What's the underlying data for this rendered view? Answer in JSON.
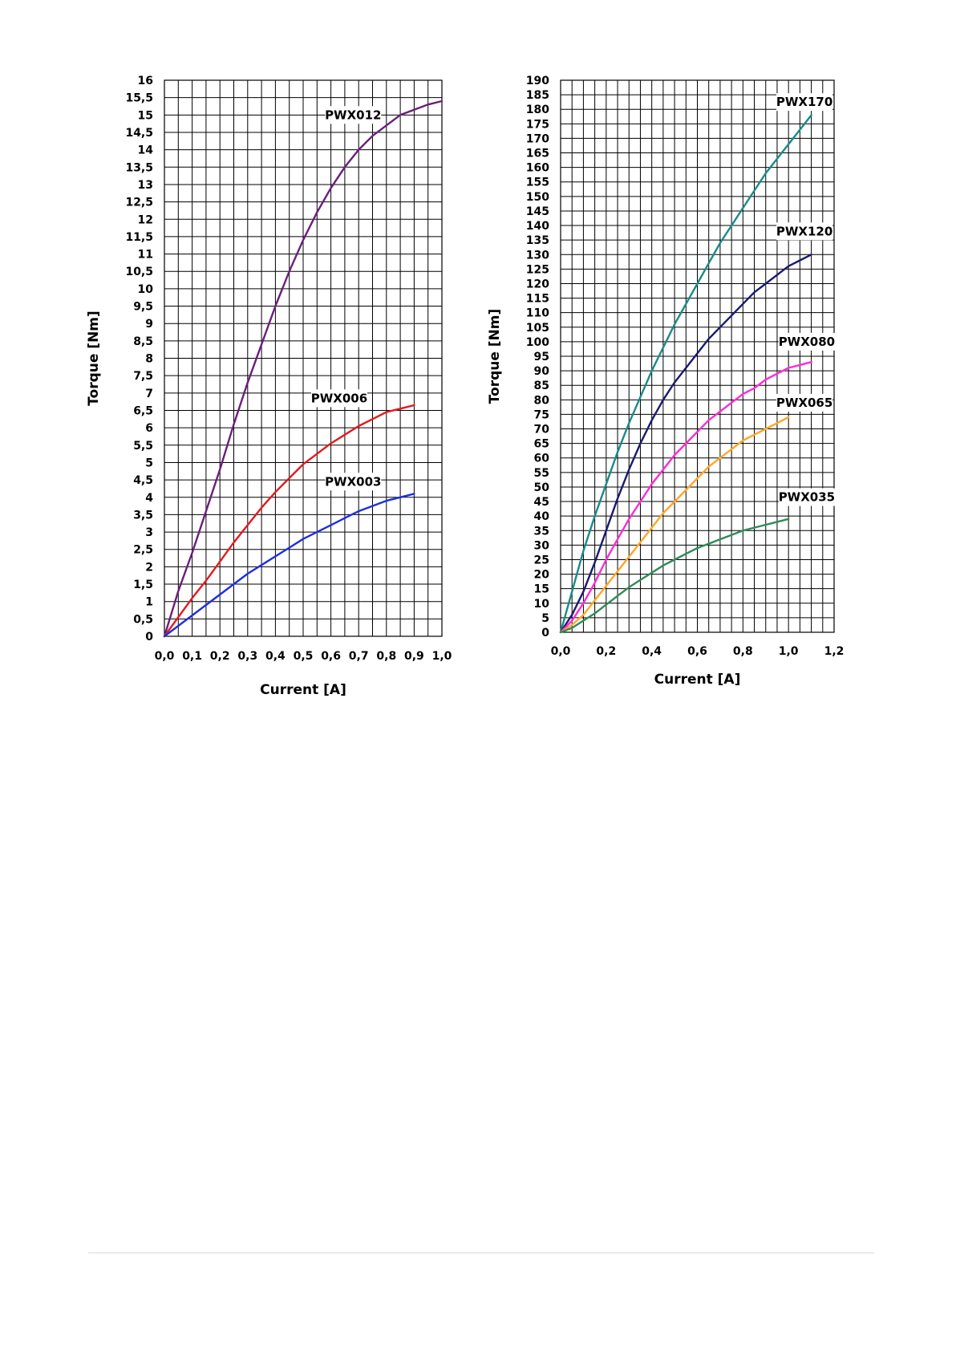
{
  "chart_data": [
    {
      "type": "line",
      "xlabel": "Current  [A]",
      "ylabel": "Torque  [Nm]",
      "xlim": [
        0,
        1.0
      ],
      "ylim": [
        0,
        16
      ],
      "x_ticks": [
        "0,0",
        "0,1",
        "0,2",
        "0,3",
        "0,4",
        "0,5",
        "0,6",
        "0,7",
        "0,8",
        "0,9",
        "1,0"
      ],
      "y_ticks": [
        "0",
        "0,5",
        "1",
        "1,5",
        "2",
        "2,5",
        "3",
        "3,5",
        "4",
        "4,5",
        "5",
        "5,5",
        "6",
        "6,5",
        "7",
        "7,5",
        "8",
        "8,5",
        "9",
        "9,5",
        "10",
        "10,5",
        "11",
        "11,5",
        "12",
        "12,5",
        "13",
        "13,5",
        "14",
        "14,5",
        "15",
        "15,5",
        "16"
      ],
      "grid": true,
      "series": [
        {
          "name": "PWX012",
          "color": "#6a1f7a",
          "x": [
            0,
            0.05,
            0.1,
            0.15,
            0.2,
            0.25,
            0.3,
            0.35,
            0.4,
            0.45,
            0.5,
            0.55,
            0.6,
            0.65,
            0.7,
            0.75,
            0.8,
            0.85,
            0.9,
            0.95,
            1.0
          ],
          "y": [
            0,
            1.3,
            2.4,
            3.6,
            4.8,
            6.1,
            7.3,
            8.4,
            9.5,
            10.5,
            11.4,
            12.2,
            12.9,
            13.5,
            14.0,
            14.4,
            14.7,
            15.0,
            15.15,
            15.3,
            15.4
          ]
        },
        {
          "name": "PWX006",
          "color": "#e31a1c",
          "x": [
            0,
            0.05,
            0.1,
            0.15,
            0.2,
            0.25,
            0.3,
            0.35,
            0.4,
            0.45,
            0.5,
            0.55,
            0.6,
            0.65,
            0.7,
            0.75,
            0.8,
            0.85,
            0.9
          ],
          "y": [
            0,
            0.55,
            1.1,
            1.6,
            2.15,
            2.7,
            3.2,
            3.7,
            4.15,
            4.55,
            4.95,
            5.25,
            5.55,
            5.8,
            6.05,
            6.25,
            6.45,
            6.55,
            6.65
          ]
        },
        {
          "name": "PWX003",
          "color": "#1f2ee0",
          "x": [
            0,
            0.05,
            0.1,
            0.15,
            0.2,
            0.25,
            0.3,
            0.35,
            0.4,
            0.45,
            0.5,
            0.55,
            0.6,
            0.65,
            0.7,
            0.75,
            0.8,
            0.85,
            0.9
          ],
          "y": [
            0,
            0.3,
            0.6,
            0.9,
            1.2,
            1.5,
            1.8,
            2.05,
            2.3,
            2.55,
            2.8,
            3.0,
            3.2,
            3.4,
            3.6,
            3.75,
            3.9,
            4.0,
            4.1
          ]
        }
      ],
      "labels": [
        {
          "text": "PWX012",
          "x": 0.68,
          "y": 15.0
        },
        {
          "text": "PWX006",
          "x": 0.63,
          "y": 6.85
        },
        {
          "text": "PWX003",
          "x": 0.68,
          "y": 4.45
        }
      ]
    },
    {
      "type": "line",
      "xlabel": "Current  [A]",
      "ylabel": "Torque  [Nm]",
      "xlim": [
        0,
        1.2
      ],
      "ylim": [
        0,
        190
      ],
      "x_ticks": [
        "0,0",
        "0,2",
        "0,4",
        "0,6",
        "0,8",
        "1,0",
        "1,2"
      ],
      "y_ticks": [
        "0",
        "5",
        "10",
        "15",
        "20",
        "25",
        "30",
        "35",
        "40",
        "45",
        "50",
        "55",
        "60",
        "65",
        "70",
        "75",
        "80",
        "85",
        "90",
        "95",
        "100",
        "105",
        "110",
        "115",
        "120",
        "125",
        "130",
        "135",
        "140",
        "145",
        "150",
        "155",
        "160",
        "165",
        "170",
        "175",
        "180",
        "185",
        "190"
      ],
      "grid": true,
      "series": [
        {
          "name": "PWX170",
          "color": "#1a8a8a",
          "x": [
            0,
            0.05,
            0.1,
            0.15,
            0.2,
            0.25,
            0.3,
            0.35,
            0.4,
            0.45,
            0.5,
            0.55,
            0.6,
            0.65,
            0.7,
            0.75,
            0.8,
            0.85,
            0.9,
            0.95,
            1.0,
            1.05,
            1.1
          ],
          "y": [
            0,
            14,
            28,
            40,
            51,
            62,
            72,
            81,
            90,
            98,
            106,
            113,
            120,
            127,
            134,
            140,
            146,
            152,
            158,
            163,
            168,
            173,
            178
          ]
        },
        {
          "name": "PWX120",
          "color": "#1a1a6e",
          "x": [
            0,
            0.05,
            0.1,
            0.15,
            0.2,
            0.25,
            0.3,
            0.35,
            0.4,
            0.45,
            0.5,
            0.55,
            0.6,
            0.65,
            0.7,
            0.75,
            0.8,
            0.85,
            0.9,
            0.95,
            1.0,
            1.05,
            1.1
          ],
          "y": [
            0,
            6,
            14,
            24,
            35,
            46,
            56,
            65,
            73,
            80,
            86,
            91,
            96,
            101,
            105,
            109,
            113,
            117,
            120,
            123,
            126,
            128,
            130
          ]
        },
        {
          "name": "PWX080",
          "color": "#ff2bd6",
          "x": [
            0,
            0.05,
            0.1,
            0.15,
            0.2,
            0.25,
            0.3,
            0.35,
            0.4,
            0.45,
            0.5,
            0.55,
            0.6,
            0.65,
            0.7,
            0.75,
            0.8,
            0.85,
            0.9,
            0.95,
            1.0,
            1.05,
            1.1
          ],
          "y": [
            0,
            4,
            10,
            17,
            25,
            32,
            39,
            45,
            51,
            56,
            61,
            65,
            69,
            73,
            76,
            79,
            82,
            84,
            87,
            89,
            91,
            92,
            93
          ]
        },
        {
          "name": "PWX065",
          "color": "#ffa726",
          "x": [
            0,
            0.05,
            0.1,
            0.15,
            0.2,
            0.25,
            0.3,
            0.35,
            0.4,
            0.45,
            0.5,
            0.55,
            0.6,
            0.65,
            0.7,
            0.75,
            0.8,
            0.85,
            0.9,
            0.95,
            1.0
          ],
          "y": [
            0,
            2.5,
            6,
            11,
            16,
            21,
            26,
            31,
            36,
            41,
            45,
            49,
            53,
            57,
            60,
            63,
            66,
            68,
            70,
            72,
            74
          ]
        },
        {
          "name": "PWX035",
          "color": "#2e8b57",
          "x": [
            0,
            0.05,
            0.1,
            0.15,
            0.2,
            0.25,
            0.3,
            0.35,
            0.4,
            0.45,
            0.5,
            0.55,
            0.6,
            0.65,
            0.7,
            0.75,
            0.8,
            0.85,
            0.9,
            0.95,
            1.0
          ],
          "y": [
            0,
            1.5,
            4,
            6.5,
            9.5,
            12.5,
            15.5,
            18,
            20.5,
            23,
            25,
            27,
            29,
            30.5,
            32,
            33.5,
            35,
            36,
            37,
            38,
            39
          ]
        }
      ],
      "labels": [
        {
          "text": "PWX170",
          "x": 1.07,
          "y": 182.5
        },
        {
          "text": "PWX120",
          "x": 1.07,
          "y": 138
        },
        {
          "text": "PWX080",
          "x": 1.08,
          "y": 100
        },
        {
          "text": "PWX065",
          "x": 1.07,
          "y": 79
        },
        {
          "text": "PWX035",
          "x": 1.08,
          "y": 46.5
        }
      ]
    }
  ]
}
